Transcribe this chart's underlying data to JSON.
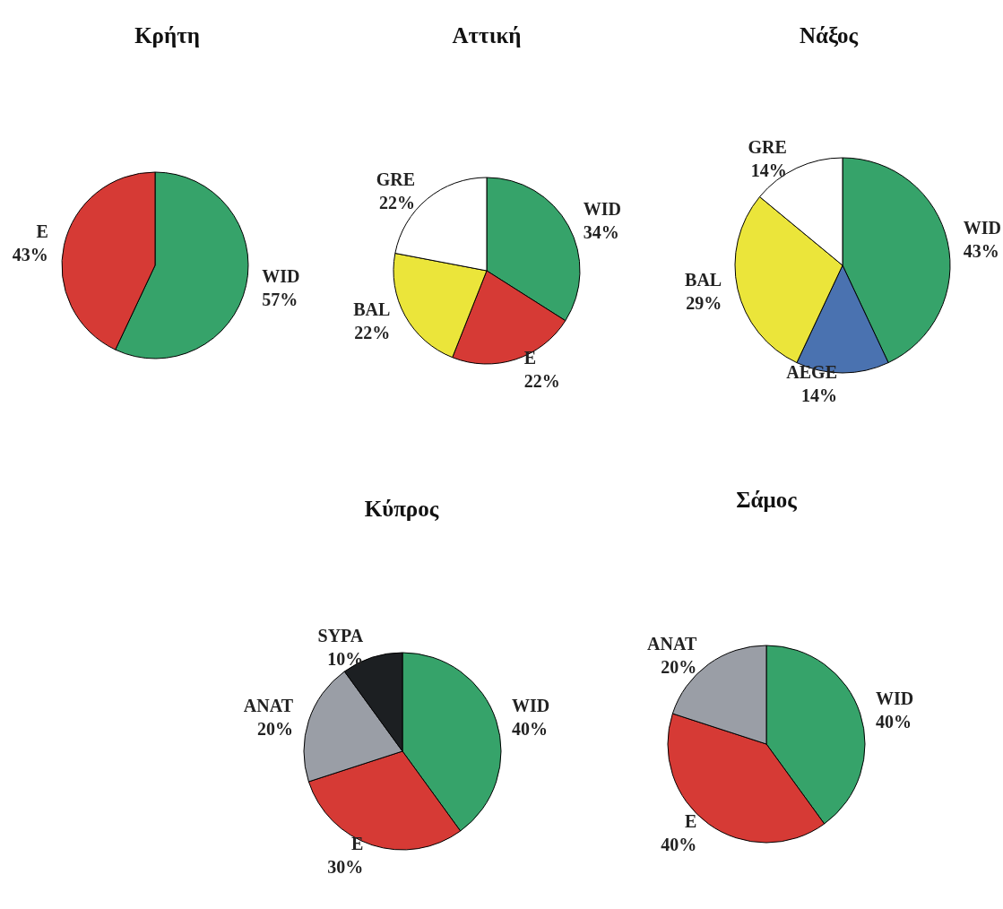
{
  "chart_data": [
    {
      "type": "pie",
      "title": "Κρήτη",
      "categories": [
        "WID",
        "E"
      ],
      "values": [
        57,
        43
      ],
      "colors": [
        "#36a36a",
        "#d63a35"
      ],
      "value_labels": [
        "57%",
        "43%"
      ]
    },
    {
      "type": "pie",
      "title": "Αττική",
      "categories": [
        "WID",
        "E",
        "BAL",
        "GRE"
      ],
      "values": [
        34,
        22,
        22,
        22
      ],
      "colors": [
        "#36a36a",
        "#d63a35",
        "#ebe53a",
        "#ffffff"
      ],
      "value_labels": [
        "34%",
        "22%",
        "22%",
        "22%"
      ]
    },
    {
      "type": "pie",
      "title": "Νάξος",
      "categories": [
        "WID",
        "AEGE",
        "BAL",
        "GRE"
      ],
      "values": [
        43,
        14,
        29,
        14
      ],
      "colors": [
        "#36a36a",
        "#4a72b0",
        "#ebe53a",
        "#ffffff"
      ],
      "value_labels": [
        "43%",
        "14%",
        "29%",
        "14%"
      ]
    },
    {
      "type": "pie",
      "title": "Κύπρος",
      "categories": [
        "WID",
        "E",
        "ANAT",
        "SYPA"
      ],
      "values": [
        40,
        30,
        20,
        10
      ],
      "colors": [
        "#36a36a",
        "#d63a35",
        "#9a9ea6",
        "#1c1f22"
      ],
      "value_labels": [
        "40%",
        "30%",
        "20%",
        "10%"
      ]
    },
    {
      "type": "pie",
      "title": "Σάμος",
      "categories": [
        "WID",
        "E",
        "ANAT"
      ],
      "values": [
        40,
        40,
        20
      ],
      "colors": [
        "#36a36a",
        "#d63a35",
        "#9a9ea6"
      ],
      "value_labels": [
        "40%",
        "40%",
        "20%"
      ]
    }
  ]
}
